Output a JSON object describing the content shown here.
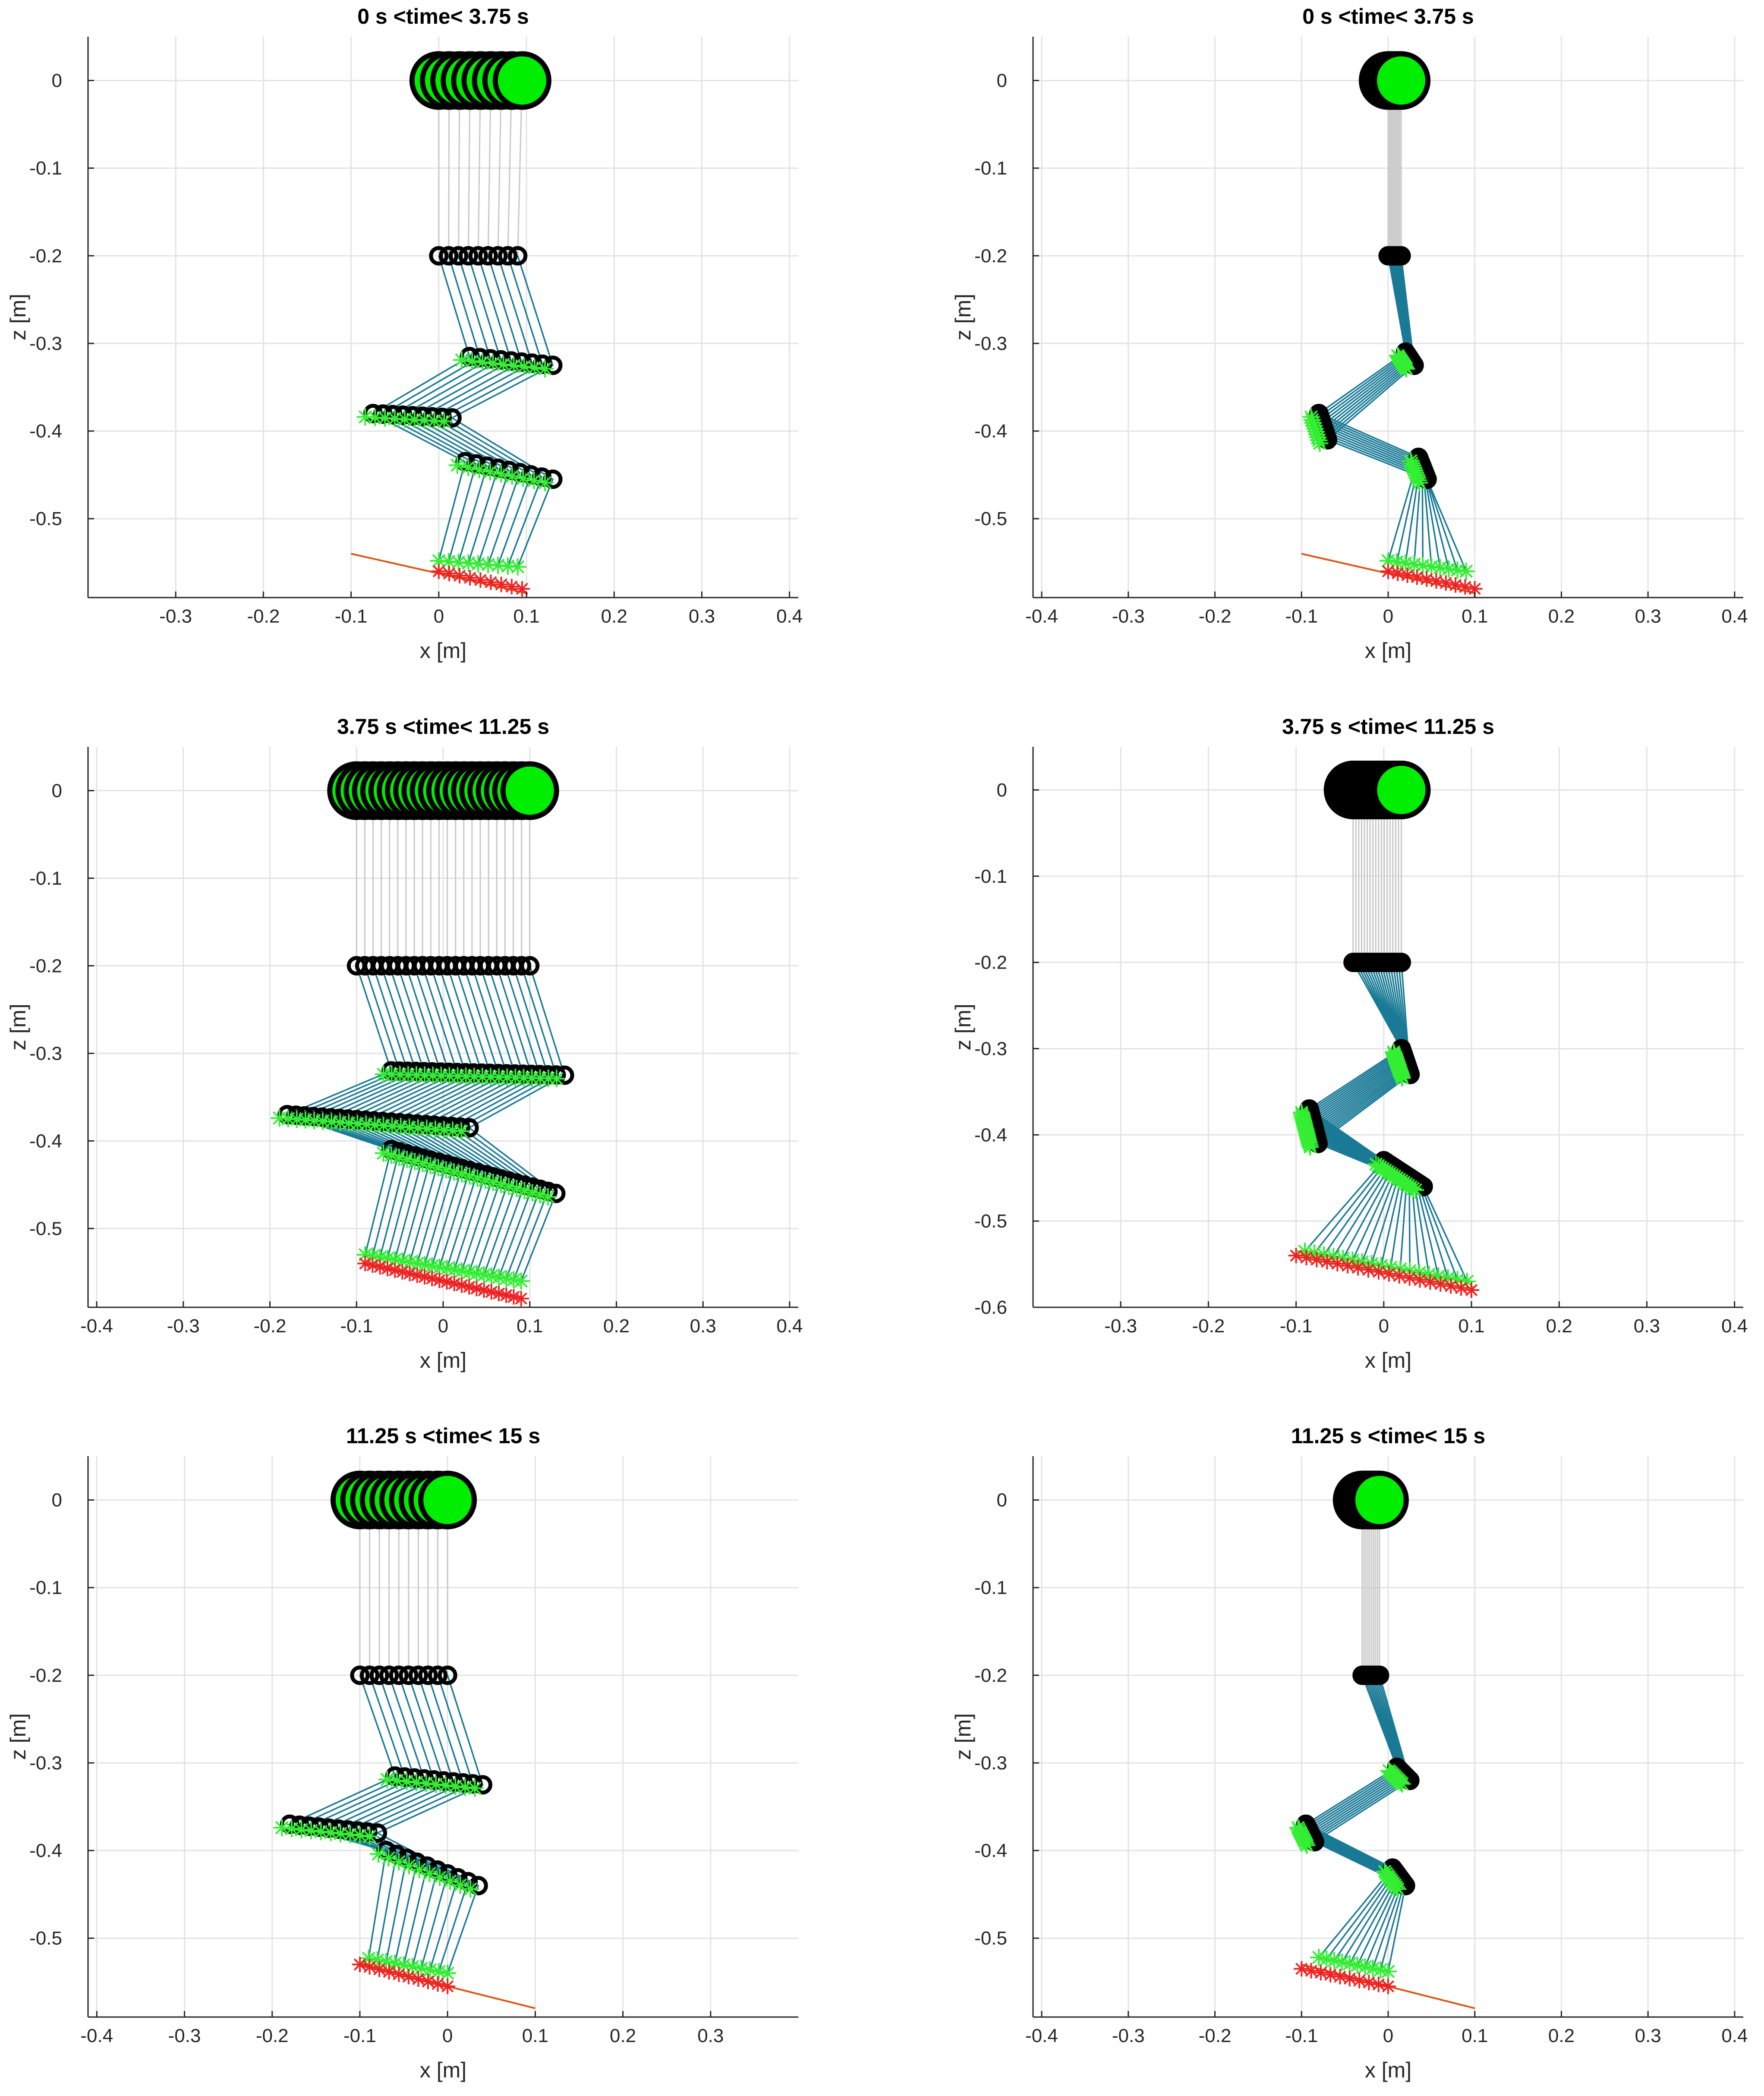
{
  "chart_data": [
    {
      "type": "line",
      "title": "0 s <time< 3.75 s",
      "xlabel": "x [m]",
      "ylabel": "z [m]",
      "xlim": [
        -0.4,
        0.41
      ],
      "ylim": [
        -0.59,
        0.05
      ],
      "xticks": [
        -0.3,
        -0.2,
        -0.1,
        0,
        0.1,
        0.2,
        0.3,
        0.4
      ],
      "xtick_labels": [
        "-0.3",
        "-0.2",
        "-0.1",
        "0",
        "0.1",
        "0.2",
        "0.3",
        "0.4"
      ],
      "yticks": [
        0,
        -0.1,
        -0.2,
        -0.3,
        -0.4,
        -0.5
      ],
      "ytick_labels": [
        "0",
        "-0.1",
        "-0.2",
        "-0.3",
        "-0.4",
        "-0.5"
      ],
      "grid": true,
      "frames": {
        "count": 9,
        "hip_x": [
          0.0,
          0.095
        ],
        "hip_z": 0.0,
        "knee_x": [
          0.0,
          0.09
        ],
        "knee_z": -0.2,
        "ankle_x": [
          0.035,
          0.13
        ],
        "ankle_z": [
          -0.315,
          -0.325
        ],
        "mid_x": [
          -0.075,
          0.015
        ],
        "mid_z": [
          -0.38,
          -0.385
        ],
        "heel_x": [
          0.03,
          0.13
        ],
        "heel_z": [
          -0.435,
          -0.455
        ],
        "toe_x": [
          0.0,
          0.09
        ],
        "toe_z": [
          -0.548,
          -0.555
        ],
        "ground_x": [
          0.0,
          0.095
        ],
        "ground_z": [
          -0.56,
          -0.58
        ]
      },
      "ground_line": {
        "x": [
          -0.1,
          0.1
        ],
        "z": [
          -0.54,
          -0.585
        ]
      }
    },
    {
      "type": "line",
      "title": "0 s <time< 3.75 s",
      "xlabel": "x [m]",
      "ylabel": "z [m]",
      "xlim": [
        -0.41,
        0.41
      ],
      "ylim": [
        -0.59,
        0.05
      ],
      "xticks": [
        -0.4,
        -0.3,
        -0.2,
        -0.1,
        0,
        0.1,
        0.2,
        0.3,
        0.4
      ],
      "xtick_labels": [
        "-0.4",
        "-0.3",
        "-0.2",
        "-0.1",
        "0",
        "0.1",
        "0.2",
        "0.3",
        "0.4"
      ],
      "yticks": [
        0,
        -0.1,
        -0.2,
        -0.3,
        -0.4,
        -0.5
      ],
      "ytick_labels": [
        "0",
        "-0.1",
        "-0.2",
        "-0.3",
        "-0.4",
        "-0.5"
      ],
      "grid": true,
      "frames": {
        "count": 10,
        "hip_x": [
          0.0,
          0.015
        ],
        "hip_z": 0.0,
        "knee_x": [
          0.0,
          0.015
        ],
        "knee_z": -0.2,
        "ankle_x": [
          0.02,
          0.03
        ],
        "ankle_z": [
          -0.31,
          -0.325
        ],
        "mid_x": [
          -0.08,
          -0.07
        ],
        "mid_z": [
          -0.38,
          -0.41
        ],
        "heel_x": [
          0.035,
          0.045
        ],
        "heel_z": [
          -0.43,
          -0.455
        ],
        "toe_x": [
          0.0,
          0.09
        ],
        "toe_z": [
          -0.548,
          -0.56
        ],
        "ground_x": [
          0.0,
          0.1
        ],
        "ground_z": [
          -0.56,
          -0.58
        ]
      },
      "ground_line": {
        "x": [
          -0.1,
          0.1
        ],
        "z": [
          -0.54,
          -0.585
        ]
      }
    },
    {
      "type": "line",
      "title": "3.75 s <time< 11.25 s",
      "xlabel": "x [m]",
      "ylabel": "z [m]",
      "xlim": [
        -0.41,
        0.41
      ],
      "ylim": [
        -0.59,
        0.05
      ],
      "xticks": [
        -0.4,
        -0.3,
        -0.2,
        -0.1,
        0,
        0.1,
        0.2,
        0.3,
        0.4
      ],
      "xtick_labels": [
        "-0.4",
        "-0.3",
        "-0.2",
        "-0.1",
        "0",
        "0.1",
        "0.2",
        "0.3",
        "0.4"
      ],
      "yticks": [
        0,
        -0.1,
        -0.2,
        -0.3,
        -0.4,
        -0.5
      ],
      "ytick_labels": [
        "0",
        "-0.1",
        "-0.2",
        "-0.3",
        "-0.4",
        "-0.5"
      ],
      "grid": true,
      "frames": {
        "count": 22,
        "hip_x": [
          -0.1,
          0.1
        ],
        "hip_z": 0.0,
        "knee_x": [
          -0.1,
          0.1
        ],
        "knee_z": -0.2,
        "ankle_x": [
          -0.06,
          0.14
        ],
        "ankle_z": [
          -0.32,
          -0.325
        ],
        "mid_x": [
          -0.18,
          0.03
        ],
        "mid_z": [
          -0.37,
          -0.385
        ],
        "heel_x": [
          -0.06,
          0.13
        ],
        "heel_z": [
          -0.41,
          -0.46
        ],
        "toe_x": [
          -0.09,
          0.09
        ],
        "toe_z": [
          -0.53,
          -0.56
        ],
        "ground_x": [
          -0.09,
          0.09
        ],
        "ground_z": [
          -0.54,
          -0.58
        ]
      },
      "ground_line": null
    },
    {
      "type": "line",
      "title": "3.75 s <time< 11.25 s",
      "xlabel": "x [m]",
      "ylabel": "z [m]",
      "xlim": [
        -0.4,
        0.41
      ],
      "ylim": [
        -0.6,
        0.05
      ],
      "xticks": [
        -0.3,
        -0.2,
        -0.1,
        0,
        0.1,
        0.2,
        0.3,
        0.4
      ],
      "xtick_labels": [
        "-0.3",
        "-0.2",
        "-0.1",
        "0",
        "0.1",
        "0.2",
        "0.3",
        "0.4"
      ],
      "yticks": [
        0,
        -0.1,
        -0.2,
        -0.3,
        -0.4,
        -0.5,
        -0.6
      ],
      "ytick_labels": [
        "0",
        "-0.1",
        "-0.2",
        "-0.3",
        "-0.4",
        "-0.5",
        "-0.6"
      ],
      "grid": true,
      "frames": {
        "count": 18,
        "hip_x": [
          -0.035,
          0.02
        ],
        "hip_z": 0.0,
        "knee_x": [
          -0.035,
          0.02
        ],
        "knee_z": -0.2,
        "ankle_x": [
          0.02,
          0.03
        ],
        "ankle_z": [
          -0.3,
          -0.33
        ],
        "mid_x": [
          -0.085,
          -0.075
        ],
        "mid_z": [
          -0.37,
          -0.41
        ],
        "heel_x": [
          0.0,
          0.045
        ],
        "heel_z": [
          -0.43,
          -0.46
        ],
        "toe_x": [
          -0.09,
          0.095
        ],
        "toe_z": [
          -0.535,
          -0.57
        ],
        "ground_x": [
          -0.1,
          0.1
        ],
        "ground_z": [
          -0.54,
          -0.58
        ]
      },
      "ground_line": null
    },
    {
      "type": "line",
      "title": "11.25 s <time< 15 s",
      "xlabel": "x [m]",
      "ylabel": "z [m]",
      "xlim": [
        -0.41,
        0.4
      ],
      "ylim": [
        -0.59,
        0.05
      ],
      "xticks": [
        -0.4,
        -0.3,
        -0.2,
        -0.1,
        0,
        0.1,
        0.2,
        0.3
      ],
      "xtick_labels": [
        "-0.4",
        "-0.3",
        "-0.2",
        "-0.1",
        "0",
        "0.1",
        "0.2",
        "0.3"
      ],
      "yticks": [
        0,
        -0.1,
        -0.2,
        -0.3,
        -0.4,
        -0.5
      ],
      "ytick_labels": [
        "0",
        "-0.1",
        "-0.2",
        "-0.3",
        "-0.4",
        "-0.5"
      ],
      "grid": true,
      "frames": {
        "count": 10,
        "hip_x": [
          -0.1,
          0.0
        ],
        "hip_z": 0.0,
        "knee_x": [
          -0.1,
          0.0
        ],
        "knee_z": -0.2,
        "ankle_x": [
          -0.06,
          0.04
        ],
        "ankle_z": [
          -0.315,
          -0.325
        ],
        "mid_x": [
          -0.18,
          -0.08
        ],
        "mid_z": [
          -0.37,
          -0.38
        ],
        "heel_x": [
          -0.07,
          0.035
        ],
        "heel_z": [
          -0.4,
          -0.44
        ],
        "toe_x": [
          -0.09,
          0.0
        ],
        "toe_z": [
          -0.523,
          -0.54
        ],
        "ground_x": [
          -0.1,
          0.0
        ],
        "ground_z": [
          -0.53,
          -0.555
        ]
      },
      "ground_line": {
        "x": [
          -0.1,
          0.1
        ],
        "z": [
          -0.53,
          -0.58
        ]
      }
    },
    {
      "type": "line",
      "title": "11.25 s <time< 15 s",
      "xlabel": "x [m]",
      "ylabel": "z [m]",
      "xlim": [
        -0.41,
        0.41
      ],
      "ylim": [
        -0.59,
        0.05
      ],
      "xticks": [
        -0.4,
        -0.3,
        -0.2,
        -0.1,
        0,
        0.1,
        0.2,
        0.3,
        0.4
      ],
      "xtick_labels": [
        "-0.4",
        "-0.3",
        "-0.2",
        "-0.1",
        "0",
        "0.1",
        "0.2",
        "0.3",
        "0.4"
      ],
      "yticks": [
        0,
        -0.1,
        -0.2,
        -0.3,
        -0.4,
        -0.5
      ],
      "ytick_labels": [
        "0",
        "-0.1",
        "-0.2",
        "-0.3",
        "-0.4",
        "-0.5"
      ],
      "grid": true,
      "frames": {
        "count": 10,
        "hip_x": [
          -0.03,
          -0.01
        ],
        "hip_z": 0.0,
        "knee_x": [
          -0.03,
          -0.01
        ],
        "knee_z": -0.2,
        "ankle_x": [
          0.01,
          0.025
        ],
        "ankle_z": [
          -0.305,
          -0.32
        ],
        "mid_x": [
          -0.095,
          -0.085
        ],
        "mid_z": [
          -0.37,
          -0.39
        ],
        "heel_x": [
          0.005,
          0.02
        ],
        "heel_z": [
          -0.42,
          -0.44
        ],
        "toe_x": [
          -0.08,
          0.0
        ],
        "toe_z": [
          -0.522,
          -0.538
        ],
        "ground_x": [
          -0.1,
          0.0
        ],
        "ground_z": [
          -0.535,
          -0.555
        ]
      },
      "ground_line": {
        "x": [
          -0.1,
          0.1
        ],
        "z": [
          -0.53,
          -0.58
        ]
      }
    }
  ],
  "colors": {
    "leg_segment": "#1a7a96",
    "thigh_segment": "#c8c8c8",
    "hip_fill": "#00ee00",
    "joint_marker": "#000000",
    "foot_star": "#33ee33",
    "ground_star": "#ee2222",
    "ground_line": "#dd5511",
    "grid": "#e3e3e3",
    "axis": "#262626"
  }
}
